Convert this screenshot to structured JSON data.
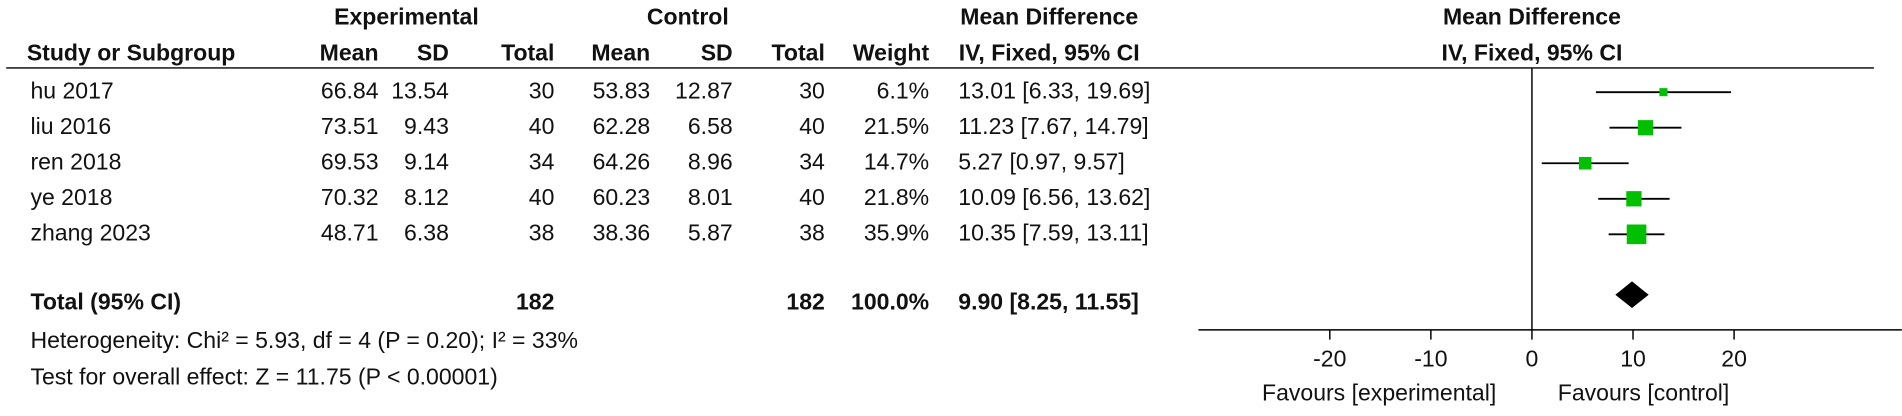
{
  "chart_data": {
    "type": "forest",
    "headers": {
      "experimental": "Experimental",
      "control": "Control",
      "md_left": "Mean Difference",
      "md_right": "Mean Difference",
      "study": "Study or Subgroup",
      "mean": "Mean",
      "sd": "SD",
      "total": "Total",
      "weight": "Weight",
      "ci_left": "IV, Fixed, 95% CI",
      "ci_right": "IV, Fixed, 95% CI"
    },
    "studies": [
      "hu 2017",
      "liu 2016",
      "ren 2018",
      "ye 2018",
      "zhang 2023"
    ],
    "exp_mean": [
      66.84,
      73.51,
      69.53,
      70.32,
      48.71
    ],
    "exp_sd": [
      13.54,
      9.43,
      9.14,
      8.12,
      6.38
    ],
    "exp_total": [
      30,
      40,
      34,
      40,
      38
    ],
    "ctrl_mean": [
      53.83,
      62.28,
      64.26,
      60.23,
      38.36
    ],
    "ctrl_sd": [
      12.87,
      6.58,
      8.96,
      8.01,
      5.87
    ],
    "ctrl_total": [
      30,
      40,
      34,
      40,
      38
    ],
    "weights": [
      6.1,
      21.5,
      14.7,
      21.8,
      35.9
    ],
    "weight_labels": [
      "6.1%",
      "21.5%",
      "14.7%",
      "21.8%",
      "35.9%"
    ],
    "md": [
      13.01,
      11.23,
      5.27,
      10.09,
      10.35
    ],
    "ci_low": [
      6.33,
      7.67,
      0.97,
      6.56,
      7.59
    ],
    "ci_high": [
      19.69,
      14.79,
      9.57,
      13.62,
      13.11
    ],
    "ci_labels": [
      "13.01 [6.33, 19.69]",
      "11.23 [7.67, 14.79]",
      "5.27 [0.97, 9.57]",
      "10.09 [6.56, 13.62]",
      "10.35 [7.59, 13.11]"
    ],
    "total": {
      "label": "Total (95% CI)",
      "exp_total": 182,
      "ctrl_total": 182,
      "weight": 100.0,
      "weight_label": "100.0%",
      "md": 9.9,
      "ci_low": 8.25,
      "ci_high": 11.55,
      "ci_label": "9.90 [8.25, 11.55]"
    },
    "heterogeneity": "Heterogeneity: Chi² = 5.93, df = 4 (P = 0.20); I² = 33%",
    "overall_effect": "Test for overall effect: Z = 11.75 (P < 0.00001)",
    "xlim": [
      -33,
      36.6
    ],
    "xticks": [
      -20,
      -10,
      0,
      10,
      20
    ],
    "xlabel_left": "Favours [experimental]",
    "xlabel_right": "Favours [control]",
    "square_color": "#00c000",
    "line_color": "#000000",
    "diamond_color": "#000000"
  }
}
